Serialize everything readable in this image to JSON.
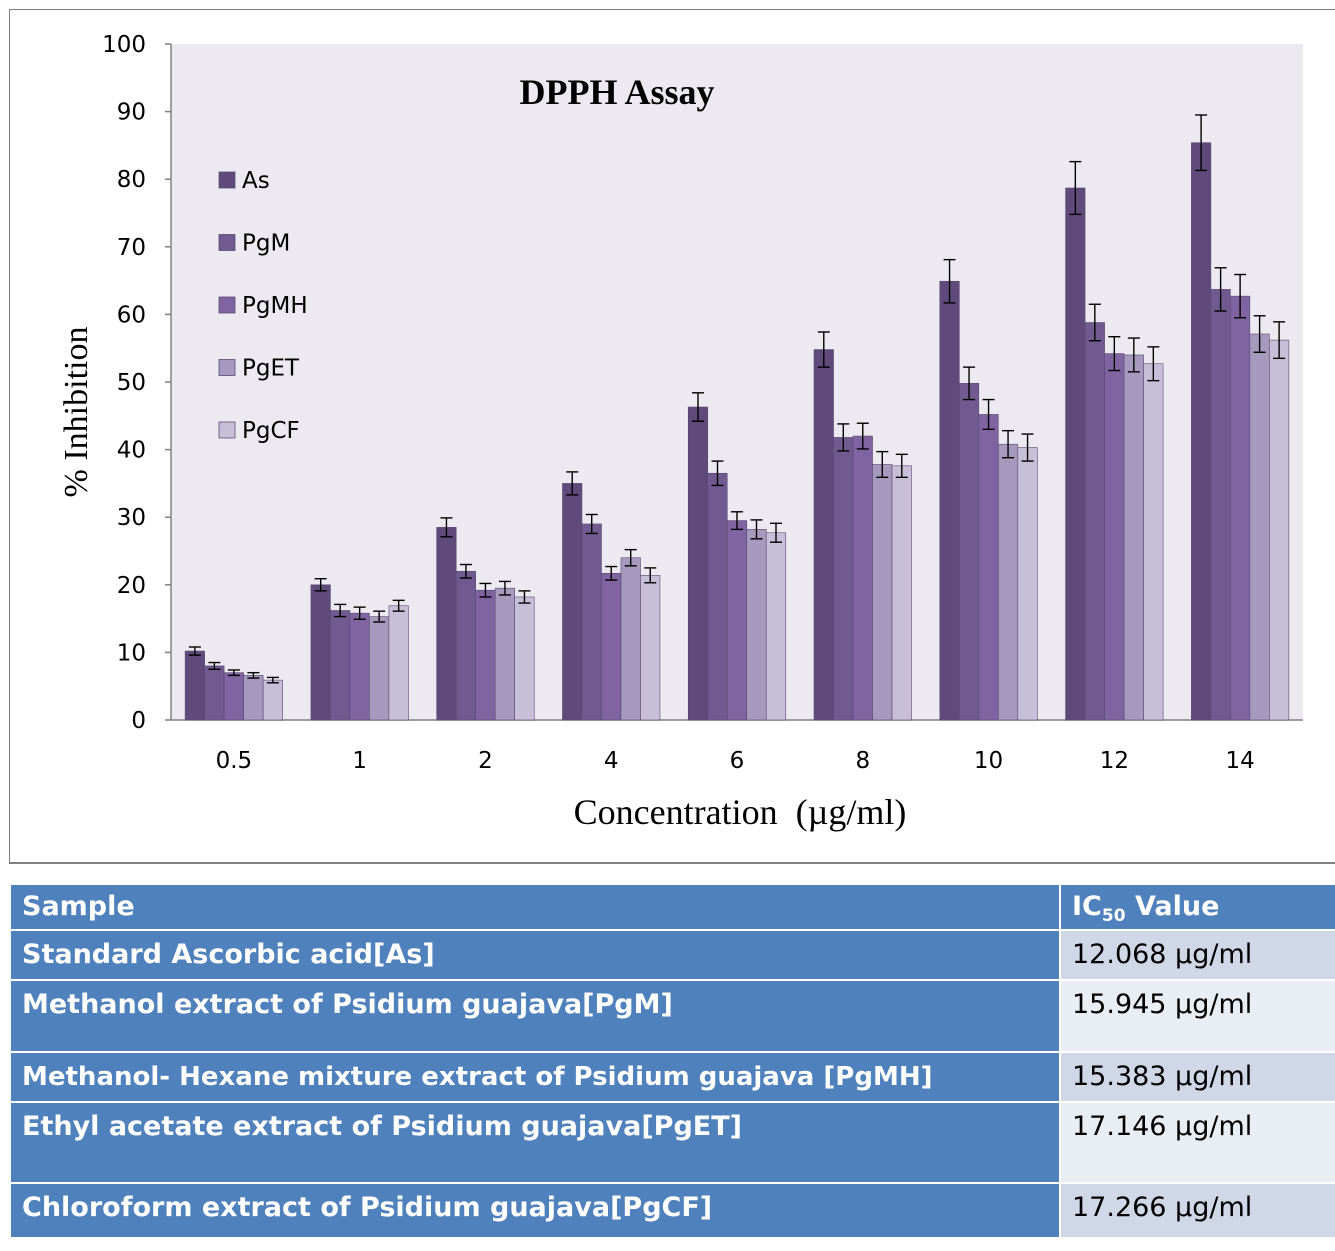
{
  "chart_data": {
    "type": "bar",
    "title": "DPPH Assay",
    "xlabel": "Concentration  (µg/ml)",
    "ylabel": "% Inhibition",
    "ylim": [
      0,
      100
    ],
    "yticks": [
      "0",
      "10",
      "20",
      "30",
      "40",
      "50",
      "60",
      "70",
      "80",
      "90",
      "100"
    ],
    "grid": false,
    "legend_position": "top-left",
    "error_bars": true,
    "categories": [
      "0.5",
      "1",
      "2",
      "4",
      "6",
      "8",
      "10",
      "12",
      "14"
    ],
    "series": [
      {
        "name": "As",
        "color": "#604a7b",
        "values": [
          10.2,
          20.0,
          28.5,
          35.0,
          46.3,
          54.8,
          64.9,
          78.7,
          85.4
        ],
        "errors": [
          0.6,
          0.9,
          1.4,
          1.7,
          2.1,
          2.6,
          3.2,
          3.9,
          4.1
        ]
      },
      {
        "name": "PgM",
        "color": "#705a8f",
        "values": [
          8.0,
          16.2,
          22.0,
          29.0,
          36.5,
          41.8,
          49.8,
          58.8,
          63.7
        ],
        "errors": [
          0.5,
          0.9,
          1.0,
          1.4,
          1.8,
          2.0,
          2.4,
          2.7,
          3.2
        ]
      },
      {
        "name": "PgMH",
        "color": "#8064a2",
        "values": [
          7.0,
          15.8,
          19.2,
          21.7,
          29.5,
          42.0,
          45.2,
          54.2,
          62.7
        ],
        "errors": [
          0.4,
          0.9,
          1.0,
          1.0,
          1.3,
          1.9,
          2.2,
          2.5,
          3.2
        ]
      },
      {
        "name": "PgET",
        "color": "#a599bd",
        "values": [
          6.6,
          15.3,
          19.5,
          24.0,
          28.2,
          37.8,
          40.8,
          54.0,
          57.1
        ],
        "errors": [
          0.4,
          0.8,
          1.0,
          1.2,
          1.4,
          1.9,
          2.0,
          2.5,
          2.7
        ]
      },
      {
        "name": "PgCF",
        "color": "#c7bfd8",
        "values": [
          5.9,
          16.9,
          18.2,
          21.4,
          27.7,
          37.6,
          40.3,
          52.7,
          56.2
        ],
        "errors": [
          0.4,
          0.8,
          0.9,
          1.1,
          1.4,
          1.7,
          2.0,
          2.5,
          2.7
        ]
      }
    ]
  },
  "table": {
    "headers": {
      "sample": "Sample",
      "ic50_main": "IC",
      "ic50_sub": "50",
      "ic50_rest": " Value"
    },
    "rows": [
      {
        "sample": "Standard Ascorbic acid[As]",
        "value": "12.068 µg/ml"
      },
      {
        "sample": "Methanol extract of Psidium guajava[PgM]",
        "value": "15.945 µg/ml"
      },
      {
        "sample": "Methanol- Hexane mixture extract of Psidium guajava [PgMH]",
        "value": "15.383 µg/ml"
      },
      {
        "sample": "Ethyl acetate extract of Psidium guajava[PgET]",
        "value": "17.146 µg/ml"
      },
      {
        "sample": "Chloroform extract of Psidium guajava[PgCF]",
        "value": "17.266 µg/ml"
      }
    ]
  }
}
